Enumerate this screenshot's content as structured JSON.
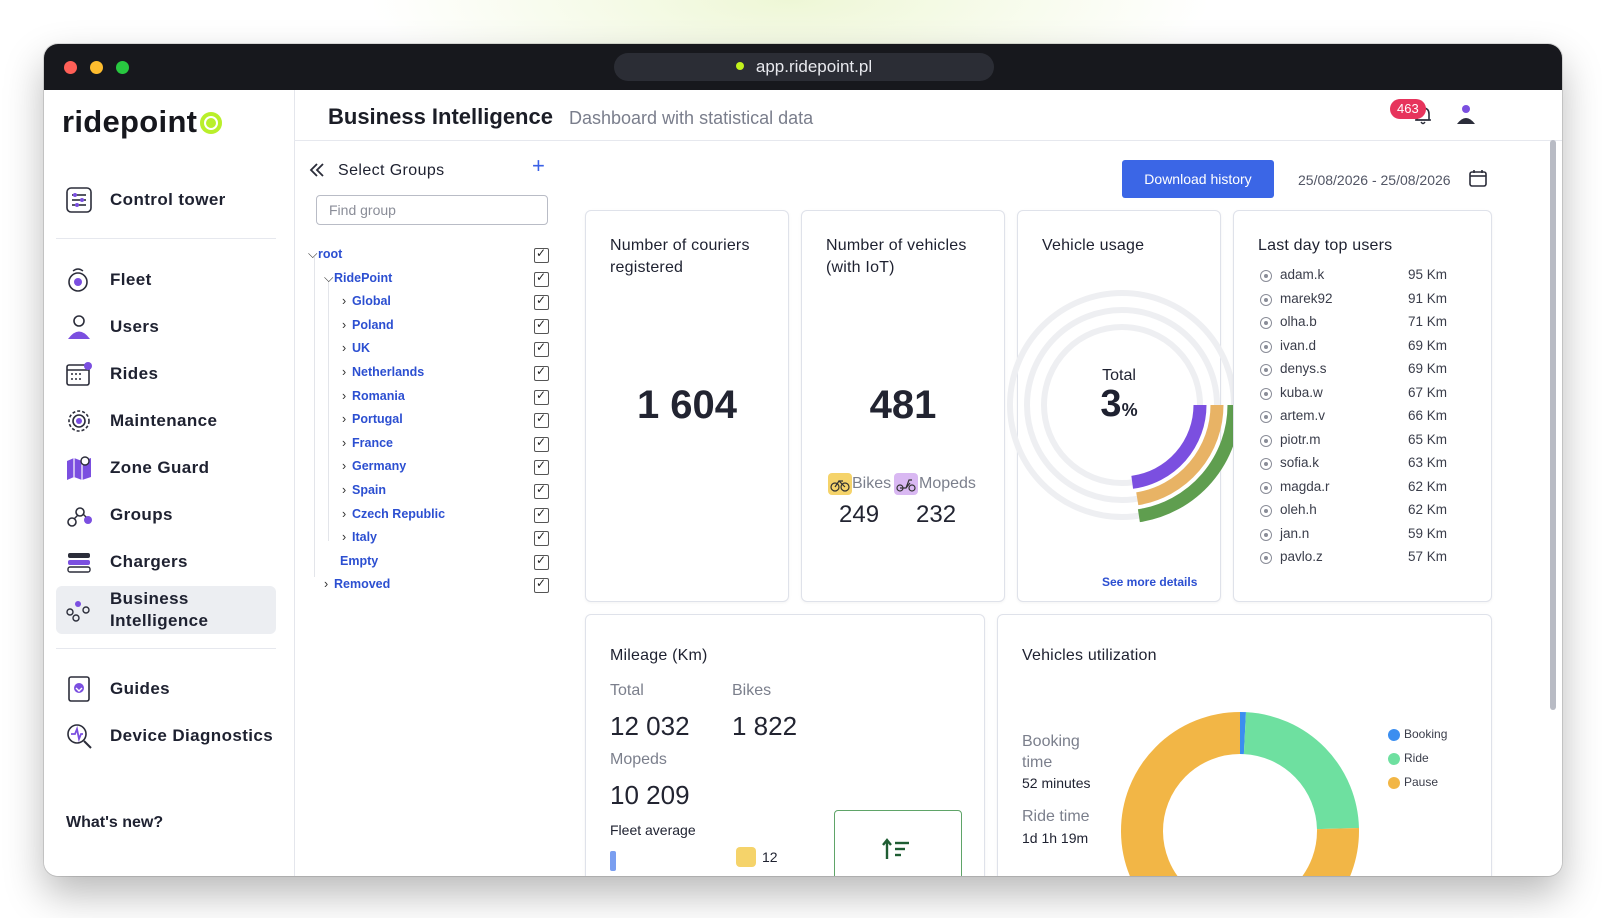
{
  "browser": {
    "url": "app.ridepoint.pl"
  },
  "sidebar": {
    "logo": "ridepoint",
    "items": [
      {
        "label": "Control tower"
      },
      {
        "label": "Fleet"
      },
      {
        "label": "Users"
      },
      {
        "label": "Rides"
      },
      {
        "label": "Maintenance"
      },
      {
        "label": "Zone Guard"
      },
      {
        "label": "Groups"
      },
      {
        "label": "Chargers"
      },
      {
        "label": "Business Intelligence"
      },
      {
        "label": "Guides"
      },
      {
        "label": "Device Diagnostics"
      }
    ],
    "whats_new": "What's new?"
  },
  "header": {
    "title": "Business Intelligence",
    "subtitle": "Dashboard with statistical data",
    "notification_count": "463"
  },
  "groups": {
    "title": "Select Groups",
    "add_icon": "plus-icon",
    "search_placeholder": "Find group",
    "tree": [
      {
        "label": "root",
        "expanded": true,
        "checked": true
      },
      {
        "label": "RidePoint",
        "expanded": true,
        "checked": true
      },
      {
        "label": "Global",
        "checked": true
      },
      {
        "label": "Poland",
        "checked": true
      },
      {
        "label": "UK",
        "checked": true
      },
      {
        "label": "Netherlands",
        "checked": true
      },
      {
        "label": "Romania",
        "checked": true
      },
      {
        "label": "Portugal",
        "checked": true
      },
      {
        "label": "France",
        "checked": true
      },
      {
        "label": "Germany",
        "checked": true
      },
      {
        "label": "Spain",
        "checked": true
      },
      {
        "label": "Czech Republic",
        "checked": true
      },
      {
        "label": "Italy",
        "checked": true
      },
      {
        "label": "Empty",
        "checked": true
      },
      {
        "label": "Removed",
        "checked": true
      }
    ]
  },
  "toolbar": {
    "download_label": "Download history",
    "date_range": "25/08/2026 - 25/08/2026"
  },
  "couriers": {
    "title": "Number of couriers registered",
    "value": "1 604"
  },
  "vehicles": {
    "title": "Number of vehicles (with IoT)",
    "value": "481",
    "bikes_label": "Bikes",
    "bikes_value": "249",
    "mopeds_label": "Mopeds",
    "mopeds_value": "232"
  },
  "usage": {
    "title": "Vehicle usage",
    "total_label": "Total",
    "total_value": "3",
    "total_unit": "%",
    "ring_fractions": [
      0.12,
      0.09,
      0.1
    ],
    "ring_colors": [
      "#7b4fe0",
      "#e8b365",
      "#5f9e4f"
    ],
    "details_link": "See more details"
  },
  "top_users": {
    "title": "Last day top users",
    "rows": [
      {
        "name": "adam.k",
        "km": "95 Km"
      },
      {
        "name": "marek92",
        "km": "91 Km"
      },
      {
        "name": "olha.b",
        "km": "71 Km"
      },
      {
        "name": "ivan.d",
        "km": "69 Km"
      },
      {
        "name": "denys.s",
        "km": "69 Km"
      },
      {
        "name": "kuba.w",
        "km": "67 Km"
      },
      {
        "name": "artem.v",
        "km": "66 Km"
      },
      {
        "name": "piotr.m",
        "km": "65 Km"
      },
      {
        "name": "sofia.k",
        "km": "63 Km"
      },
      {
        "name": "magda.r",
        "km": "62 Km"
      },
      {
        "name": "oleh.h",
        "km": "62 Km"
      },
      {
        "name": "jan.n",
        "km": "59 Km"
      },
      {
        "name": "pavlo.z",
        "km": "57 Km"
      }
    ]
  },
  "mileage": {
    "title": "Mileage (Km)",
    "total_label": "Total",
    "total_value": "12 032",
    "bikes_label": "Bikes",
    "bikes_value": "1 822",
    "mopeds_label": "Mopeds",
    "mopeds_value": "10 209",
    "fleet_avg_label": "Fleet average",
    "fleet_avg_value": "12"
  },
  "utilization": {
    "title": "Vehicles utilization",
    "booking_label": "Booking time",
    "booking_value": "52 minutes",
    "ride_label": "Ride time",
    "ride_value": "1d 1h 19m",
    "legend": [
      {
        "label": "Booking",
        "color": "#3b8ef0"
      },
      {
        "label": "Ride",
        "color": "#6ee0a0"
      },
      {
        "label": "Pause",
        "color": "#f2b646"
      }
    ],
    "chart_data": {
      "type": "pie",
      "categories": [
        "Booking",
        "Ride",
        "Pause"
      ],
      "values": [
        0.8,
        23.8,
        75.4
      ],
      "labels_shown": [
        "",
        "23.8%",
        ""
      ]
    }
  }
}
